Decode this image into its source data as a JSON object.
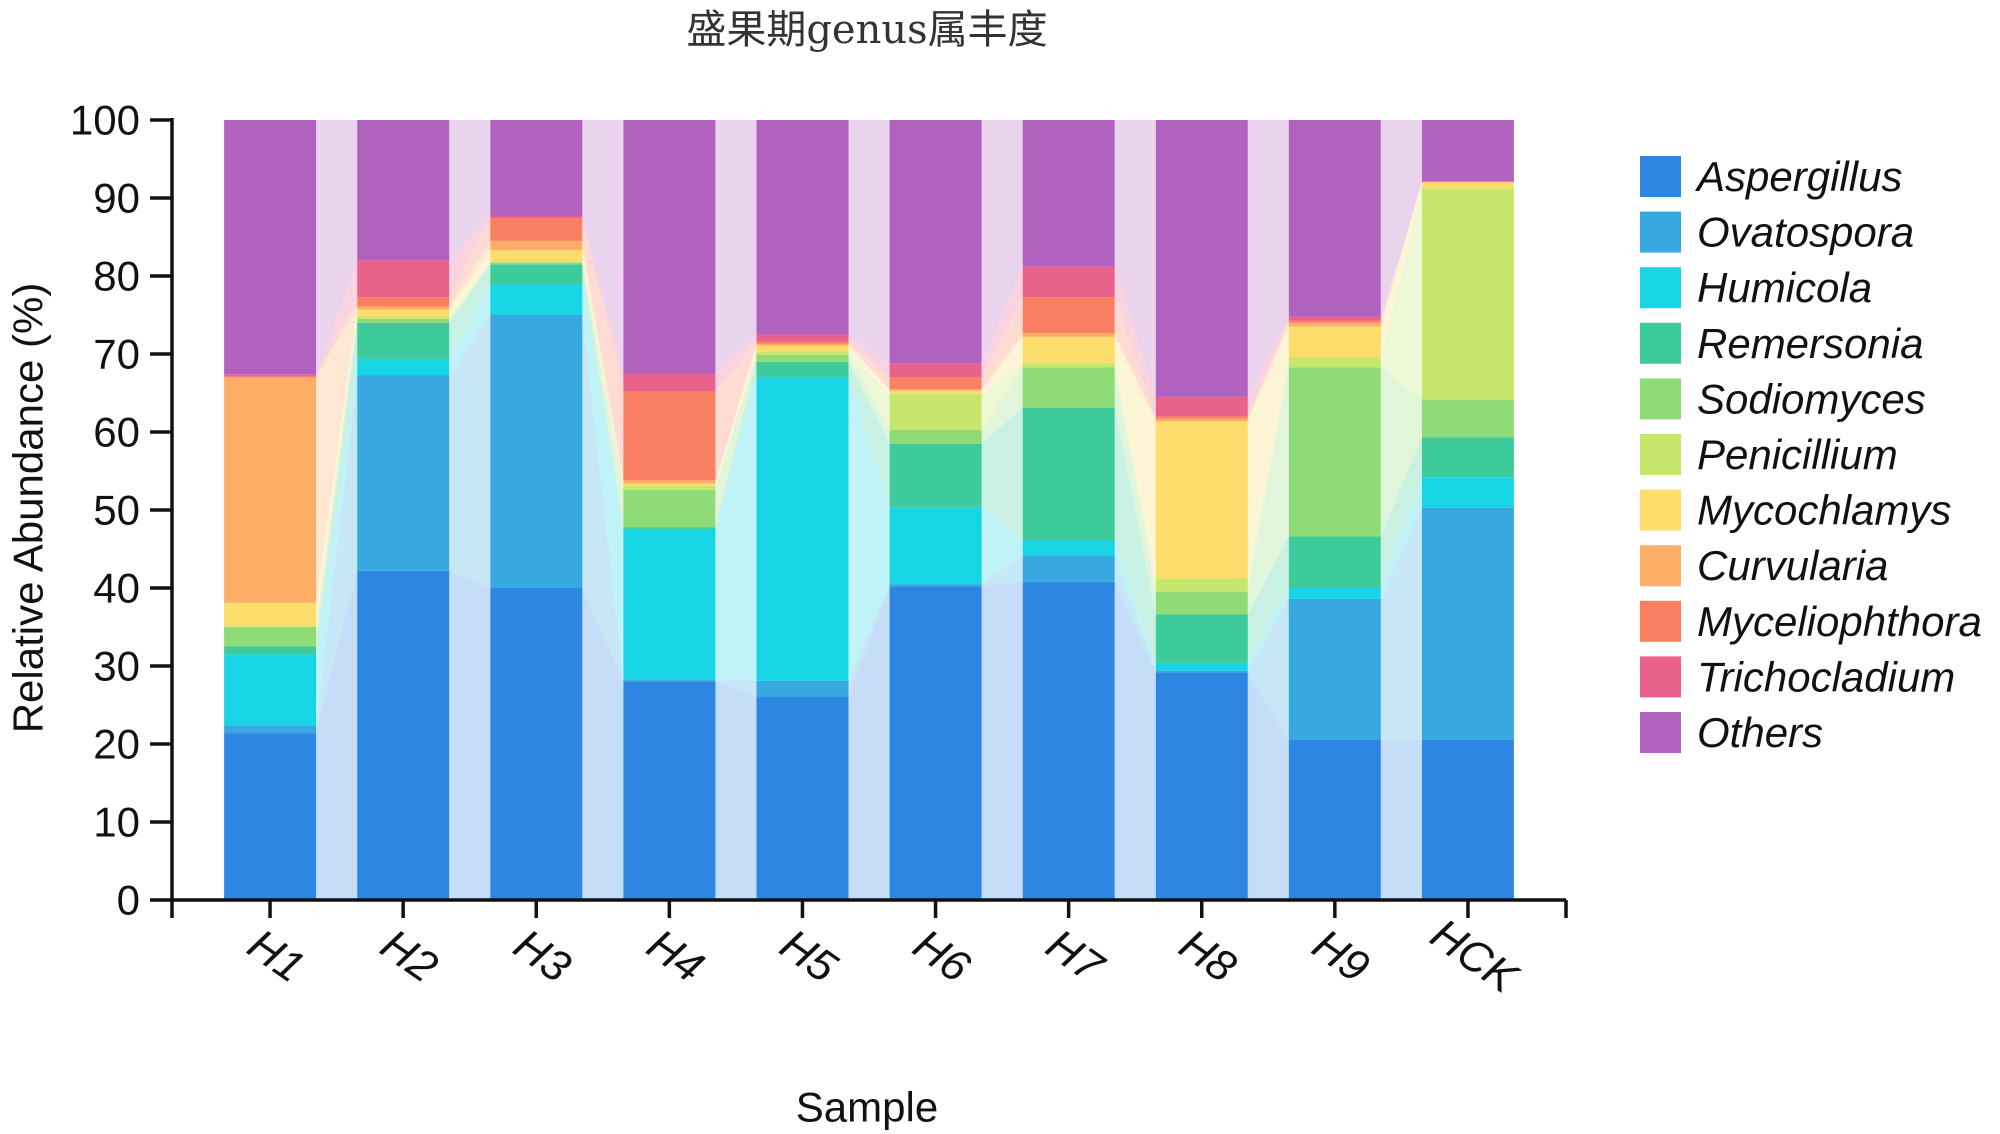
{
  "chart_data": {
    "type": "bar",
    "stacked": true,
    "title": "盛果期genus属丰度",
    "xlabel": "Sample",
    "ylabel": "Relative Abundance (%)",
    "ylim": [
      0,
      100
    ],
    "yticks": [
      0,
      10,
      20,
      30,
      40,
      50,
      60,
      70,
      80,
      90,
      100
    ],
    "grid": false,
    "legend_position": "right",
    "categories": [
      "H1",
      "H2",
      "H3",
      "H4",
      "H5",
      "H6",
      "H7",
      "H8",
      "H9",
      "HCK"
    ],
    "series": [
      {
        "name": "Aspergillus",
        "color": "#2E86E3",
        "values": [
          21.4,
          42.2,
          40.0,
          28.0,
          26.1,
          40.2,
          40.8,
          29.1,
          20.6,
          20.6
        ]
      },
      {
        "name": "Ovatospora",
        "color": "#38A9E0",
        "values": [
          1.0,
          25.1,
          35.0,
          0.2,
          2.0,
          0.3,
          3.3,
          0.3,
          18.0,
          29.7
        ]
      },
      {
        "name": "Humicola",
        "color": "#18D5E6",
        "values": [
          9.1,
          2.1,
          3.9,
          19.3,
          38.9,
          9.8,
          2.0,
          1.0,
          1.4,
          3.9
        ]
      },
      {
        "name": "Remersonia",
        "color": "#3DCB9B",
        "values": [
          1.0,
          4.6,
          2.6,
          0.3,
          2.0,
          8.2,
          17.0,
          6.2,
          6.6,
          5.1
        ]
      },
      {
        "name": "Sodiomyces",
        "color": "#8EDB78",
        "values": [
          2.5,
          0.5,
          0.2,
          4.8,
          0.9,
          1.8,
          5.2,
          2.9,
          21.7,
          4.8
        ]
      },
      {
        "name": "Penicillium",
        "color": "#C6E66C",
        "values": [
          0.1,
          0.3,
          0.2,
          0.5,
          0.4,
          4.6,
          0.5,
          1.7,
          1.3,
          27.1
        ]
      },
      {
        "name": "Mycochlamys",
        "color": "#FCDC6A",
        "values": [
          3.0,
          0.9,
          1.4,
          0.3,
          0.8,
          0.4,
          3.4,
          20.2,
          3.9,
          0.8
        ]
      },
      {
        "name": "Curvularia",
        "color": "#FCAD66",
        "values": [
          28.9,
          0.4,
          1.2,
          0.4,
          0.2,
          0.2,
          0.5,
          0.3,
          0.5,
          0.1
        ]
      },
      {
        "name": "Myceliophthora",
        "color": "#FB8063",
        "values": [
          0.1,
          1.2,
          2.9,
          11.4,
          0.3,
          1.5,
          4.6,
          0.3,
          0.3,
          0.0
        ]
      },
      {
        "name": "Trichocladium",
        "color": "#E8628B",
        "values": [
          0.3,
          4.7,
          0.3,
          2.3,
          0.9,
          1.8,
          3.9,
          2.5,
          0.5,
          0.0
        ]
      },
      {
        "name": "Others",
        "color": "#B062BE",
        "values": [
          32.6,
          18.0,
          12.3,
          32.5,
          27.5,
          31.2,
          18.8,
          35.5,
          25.2,
          7.9
        ]
      }
    ]
  }
}
